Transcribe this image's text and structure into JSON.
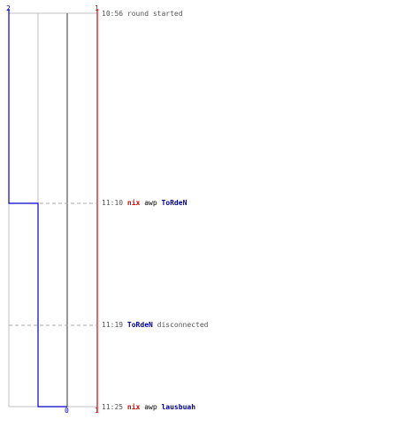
{
  "teams": {
    "blue": {
      "score_label": "2",
      "color": "#0000cc"
    },
    "red": {
      "score_label": "1",
      "color": "#dd0000"
    }
  },
  "axis": {
    "bottom_zero": "0",
    "bottom_one": "1"
  },
  "events": [
    {
      "time": "10:56",
      "text": "round started"
    },
    {
      "time": "11:10",
      "attacker": "nix",
      "weapon": "awp",
      "victim": "ToRdeN"
    },
    {
      "time": "11:19",
      "player": "ToRdeN",
      "text": "disconnected"
    },
    {
      "time": "11:25",
      "attacker": "nix",
      "weapon": "awp",
      "victim": "lausbuah"
    }
  ],
  "colors": {
    "grid": "#c0c0c0",
    "dashed": "#aaaaaa",
    "center_line": "#555555",
    "red_line": "#dd0000",
    "blue_line": "#0000cc"
  }
}
